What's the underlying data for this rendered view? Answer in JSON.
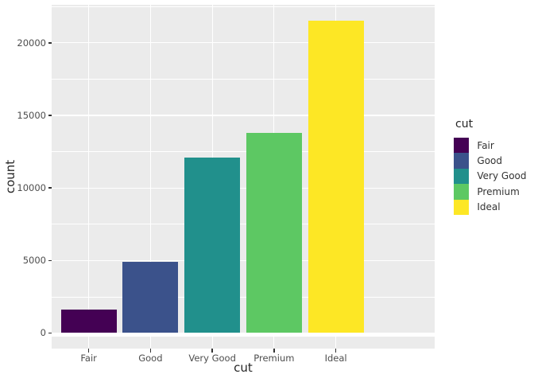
{
  "chart_data": {
    "type": "bar",
    "title": "",
    "xlabel": "cut",
    "ylabel": "count",
    "categories": [
      "Fair",
      "Good",
      "Very Good",
      "Premium",
      "Ideal"
    ],
    "values": [
      1610,
      4906,
      12082,
      13791,
      21551
    ],
    "bar_colors": [
      "#440154",
      "#3B528B",
      "#21908C",
      "#5DC863",
      "#FDE725"
    ],
    "y_major_ticks": [
      0,
      5000,
      10000,
      15000,
      20000
    ],
    "y_tick_labels": [
      "0",
      "5000",
      "10000",
      "15000",
      "20000"
    ],
    "y_minor_ticks": [
      2500,
      7500,
      12500,
      17500,
      22500
    ],
    "ylim": [
      -1077.55,
      22628.55
    ],
    "bar_rel_width": 0.9,
    "x_expand": 0.6,
    "grid": true,
    "legend_position": "right",
    "legend": {
      "title": "cut",
      "entries": [
        {
          "label": "Fair",
          "color": "#440154"
        },
        {
          "label": "Good",
          "color": "#3B528B"
        },
        {
          "label": "Very Good",
          "color": "#21908C"
        },
        {
          "label": "Premium",
          "color": "#5DC863"
        },
        {
          "label": "Ideal",
          "color": "#FDE725"
        }
      ]
    },
    "style": {
      "panel_bg": "#EBEBEB",
      "grid_color": "#FFFFFF",
      "tick_mark_color": "#333333",
      "tick_label_color": "#4D4D4D",
      "title_color": "#262626"
    }
  }
}
